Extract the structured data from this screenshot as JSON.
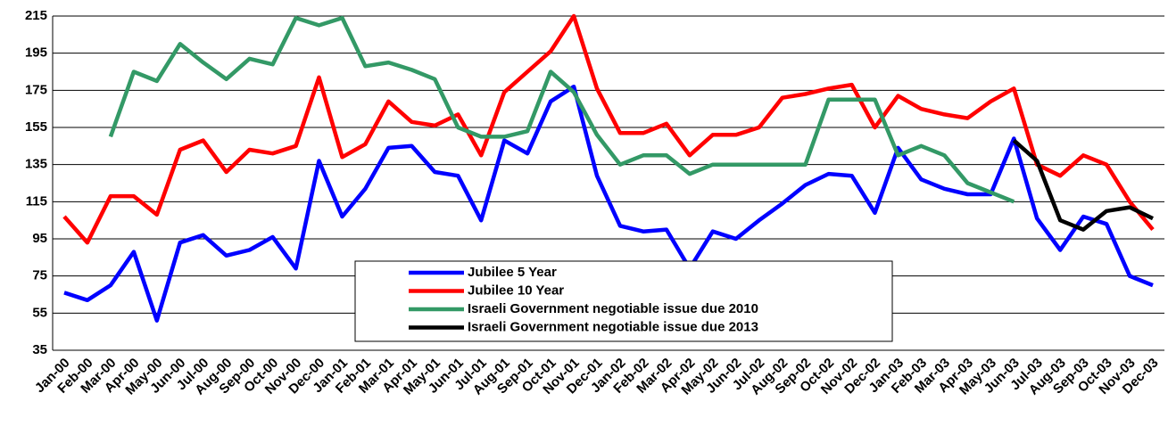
{
  "chart_data": {
    "type": "line",
    "categories": [
      "Jan-00",
      "Feb-00",
      "Mar-00",
      "Apr-00",
      "May-00",
      "Jun-00",
      "Jul-00",
      "Aug-00",
      "Sep-00",
      "Oct-00",
      "Nov-00",
      "Dec-00",
      "Jan-01",
      "Feb-01",
      "Mar-01",
      "Apr-01",
      "May-01",
      "Jun-01",
      "Jul-01",
      "Aug-01",
      "Sep-01",
      "Oct-01",
      "Nov-01",
      "Dec-01",
      "Jan-02",
      "Feb-02",
      "Mar-02",
      "Apr-02",
      "May-02",
      "Jun-02",
      "Jul-02",
      "Aug-02",
      "Sep-02",
      "Oct-02",
      "Nov-02",
      "Dec-02",
      "Jan-03",
      "Feb-03",
      "Mar-03",
      "Apr-03",
      "May-03",
      "Jun-03",
      "Jul-03",
      "Aug-03",
      "Sep-03",
      "Oct-03",
      "Nov-03",
      "Dec-03"
    ],
    "series": [
      {
        "name": "Jubilee 5 Year",
        "color": "#0000ff",
        "values": [
          66,
          62,
          70,
          88,
          51,
          93,
          97,
          86,
          89,
          96,
          79,
          137,
          107,
          122,
          144,
          145,
          131,
          129,
          105,
          148,
          141,
          169,
          177,
          129,
          102,
          99,
          100,
          79,
          99,
          95,
          105,
          114,
          124,
          130,
          129,
          109,
          144,
          127,
          122,
          119,
          119,
          149,
          106,
          89,
          107,
          103,
          75,
          70
        ]
      },
      {
        "name": "Jubilee 10 Year",
        "color": "#ff0000",
        "values": [
          107,
          93,
          118,
          118,
          108,
          143,
          148,
          131,
          143,
          141,
          145,
          182,
          139,
          146,
          169,
          158,
          156,
          162,
          140,
          174,
          185,
          196,
          215,
          176,
          152,
          152,
          157,
          140,
          151,
          151,
          155,
          171,
          173,
          176,
          178,
          155,
          172,
          165,
          162,
          160,
          169,
          176,
          135,
          129,
          140,
          135,
          115,
          100
        ]
      },
      {
        "name": "Israeli Government negotiable issue due 2010",
        "color": "#339966",
        "values": [
          null,
          null,
          150,
          185,
          180,
          200,
          190,
          181,
          192,
          189,
          214,
          210,
          214,
          188,
          190,
          186,
          181,
          155,
          150,
          150,
          153,
          185,
          174,
          151,
          135,
          140,
          140,
          130,
          135,
          135,
          135,
          135,
          135,
          170,
          170,
          170,
          140,
          145,
          140,
          125,
          120,
          115,
          null,
          null,
          null,
          null,
          null,
          null
        ]
      },
      {
        "name": "Israeli Government negotiable issue due 2013",
        "color": "#000000",
        "values": [
          null,
          null,
          null,
          null,
          null,
          null,
          null,
          null,
          null,
          null,
          null,
          null,
          null,
          null,
          null,
          null,
          null,
          null,
          null,
          null,
          null,
          null,
          null,
          null,
          null,
          null,
          null,
          null,
          null,
          null,
          null,
          null,
          null,
          null,
          null,
          null,
          null,
          null,
          null,
          null,
          null,
          148,
          137,
          105,
          100,
          110,
          112,
          106
        ]
      }
    ],
    "ylim": [
      35,
      215
    ],
    "yticks": [
      35,
      55,
      75,
      95,
      115,
      135,
      155,
      175,
      195,
      215
    ],
    "grid": true
  }
}
